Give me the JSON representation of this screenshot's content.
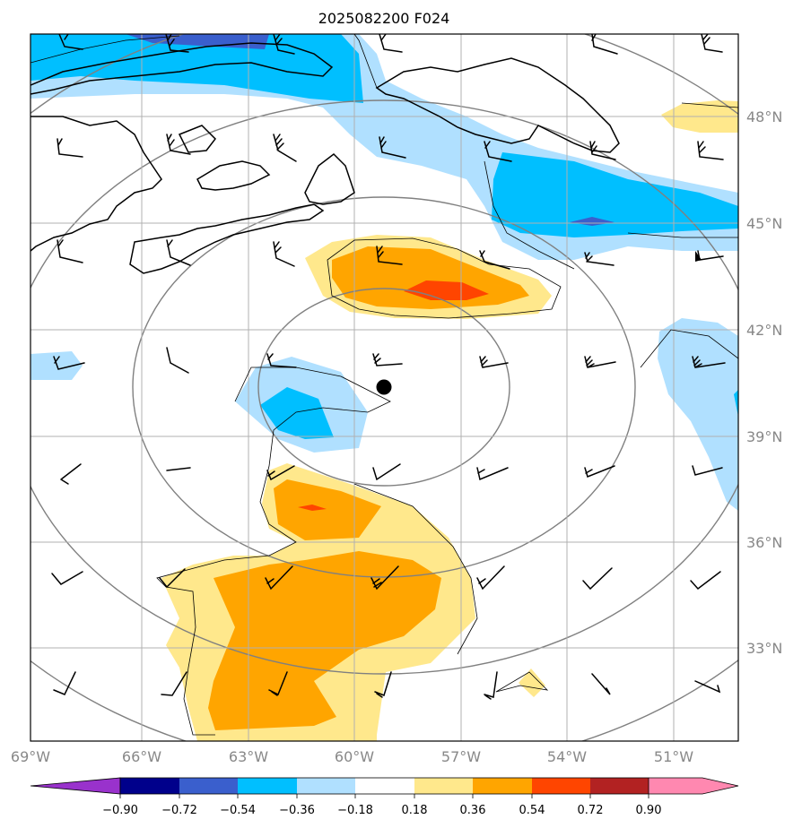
{
  "title": "2025082200 F024",
  "latitude_labels": [
    "48°N",
    "45°N",
    "42°N",
    "39°N",
    "36°N",
    "33°N"
  ],
  "longitude_labels": [
    "69°W",
    "66°W",
    "63°W",
    "60°W",
    "57°W",
    "54°W",
    "51°W"
  ],
  "colorbar": {
    "labels": [
      "−0.90",
      "−0.72",
      "−0.54",
      "−0.36",
      "−0.18",
      "0.18",
      "0.36",
      "0.54",
      "0.72",
      "0.90"
    ],
    "colors": {
      "lt_neg_extend": "#9932cc",
      "neg_090": "#00008b",
      "neg_072": "#3a5fcd",
      "neg_054": "#00bfff",
      "neg_036": "#b0e0ff",
      "neutral": "#ffffff",
      "pos_018": "#ffe88c",
      "pos_036": "#ffa500",
      "pos_054": "#ff4500",
      "pos_072": "#b22222",
      "gt_pos_extend": "#ff88b0"
    }
  },
  "map": {
    "projection_center_marker": "black-dot",
    "range_rings": "concentric-circles",
    "wind_barbs": "black-barbs"
  }
}
